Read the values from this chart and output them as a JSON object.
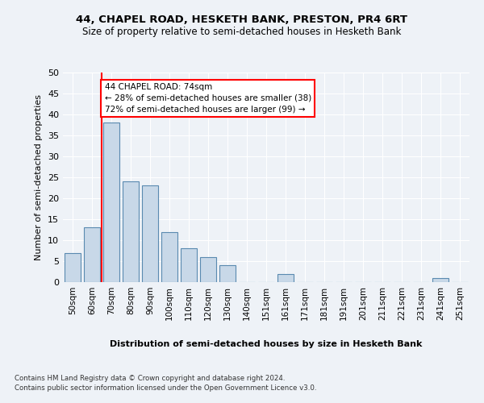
{
  "title1": "44, CHAPEL ROAD, HESKETH BANK, PRESTON, PR4 6RT",
  "title2": "Size of property relative to semi-detached houses in Hesketh Bank",
  "xlabel": "Distribution of semi-detached houses by size in Hesketh Bank",
  "ylabel": "Number of semi-detached properties",
  "bin_labels": [
    "50sqm",
    "60sqm",
    "70sqm",
    "80sqm",
    "90sqm",
    "100sqm",
    "110sqm",
    "120sqm",
    "130sqm",
    "140sqm",
    "151sqm",
    "161sqm",
    "171sqm",
    "181sqm",
    "191sqm",
    "201sqm",
    "211sqm",
    "221sqm",
    "231sqm",
    "241sqm",
    "251sqm"
  ],
  "bar_values": [
    7,
    13,
    38,
    24,
    23,
    12,
    8,
    6,
    4,
    0,
    0,
    2,
    0,
    0,
    0,
    0,
    0,
    0,
    0,
    1,
    0
  ],
  "bar_color": "#c8d8e8",
  "bar_edge_color": "#5a8ab0",
  "vline_color": "red",
  "vline_bin": 2,
  "annotation_text": "44 CHAPEL ROAD: 74sqm\n← 28% of semi-detached houses are smaller (38)\n72% of semi-detached houses are larger (99) →",
  "annotation_box_color": "white",
  "annotation_box_edge": "red",
  "ylim": [
    0,
    50
  ],
  "yticks": [
    0,
    5,
    10,
    15,
    20,
    25,
    30,
    35,
    40,
    45,
    50
  ],
  "footer1": "Contains HM Land Registry data © Crown copyright and database right 2024.",
  "footer2": "Contains public sector information licensed under the Open Government Licence v3.0.",
  "bg_color": "#eef2f7",
  "plot_bg_color": "#eef2f7"
}
